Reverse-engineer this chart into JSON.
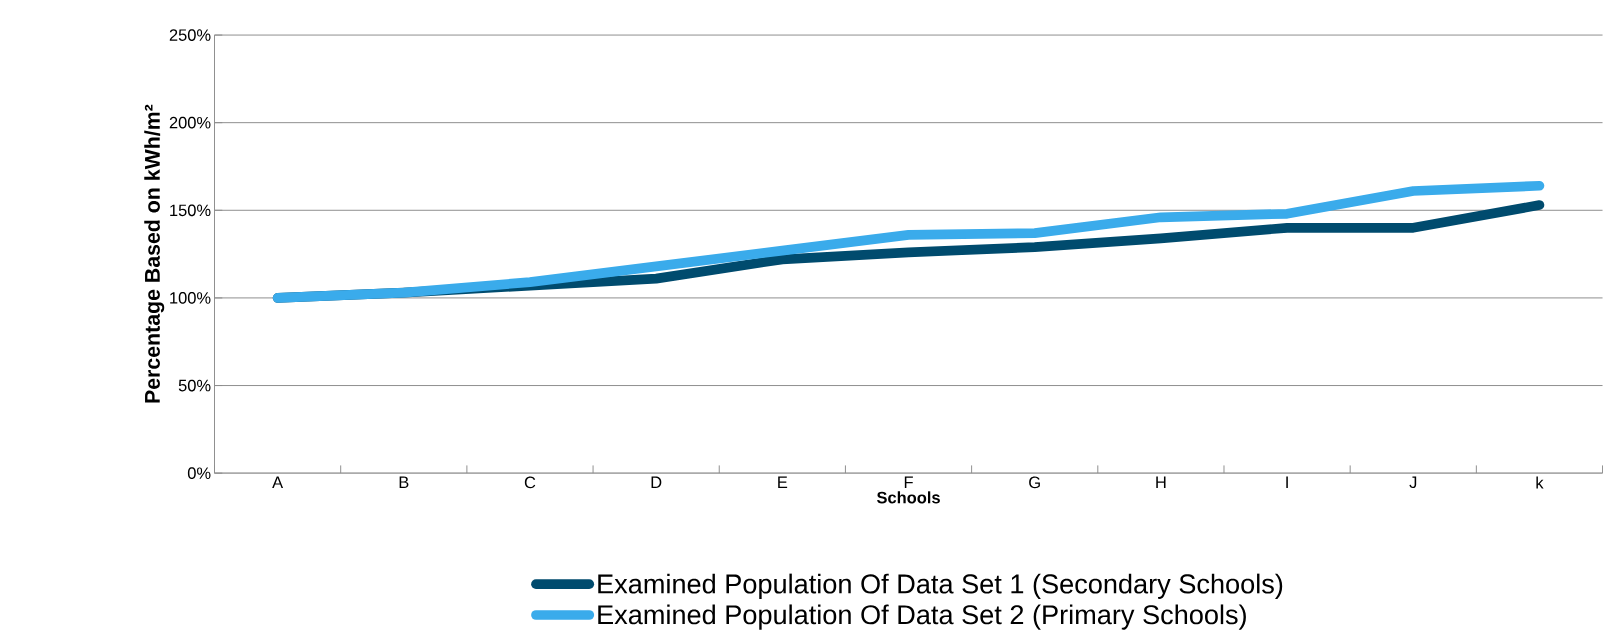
{
  "chart_data": {
    "type": "line",
    "xlabel": "Schools",
    "ylabel": "Percentage Based on kWh/m²",
    "categories": [
      "A",
      "B",
      "C",
      "D",
      "E",
      "F",
      "G",
      "H",
      "I",
      "J",
      "k"
    ],
    "series": [
      {
        "name": "Examined Population Of Data Set 1 (Secondary Schools)",
        "color": "#004b6e",
        "values": [
          100,
          103,
          107,
          111,
          122,
          126,
          129,
          134,
          140,
          140,
          153
        ]
      },
      {
        "name": "Examined Population Of Data Set 2 (Primary Schools)",
        "color": "#3aabeb",
        "values": [
          100,
          103,
          109,
          118,
          127,
          136,
          137,
          146,
          148,
          161,
          164
        ]
      }
    ],
    "ylim": [
      0,
      250
    ],
    "yticks": [
      {
        "value": 0,
        "label": "0%"
      },
      {
        "value": 50,
        "label": "50%"
      },
      {
        "value": 100,
        "label": "100%"
      },
      {
        "value": 150,
        "label": "150%"
      },
      {
        "value": 200,
        "label": "200%"
      },
      {
        "value": 250,
        "label": "250%"
      }
    ],
    "grid": "y",
    "legend": "bottom",
    "marker": "none",
    "line_style": "solid"
  }
}
